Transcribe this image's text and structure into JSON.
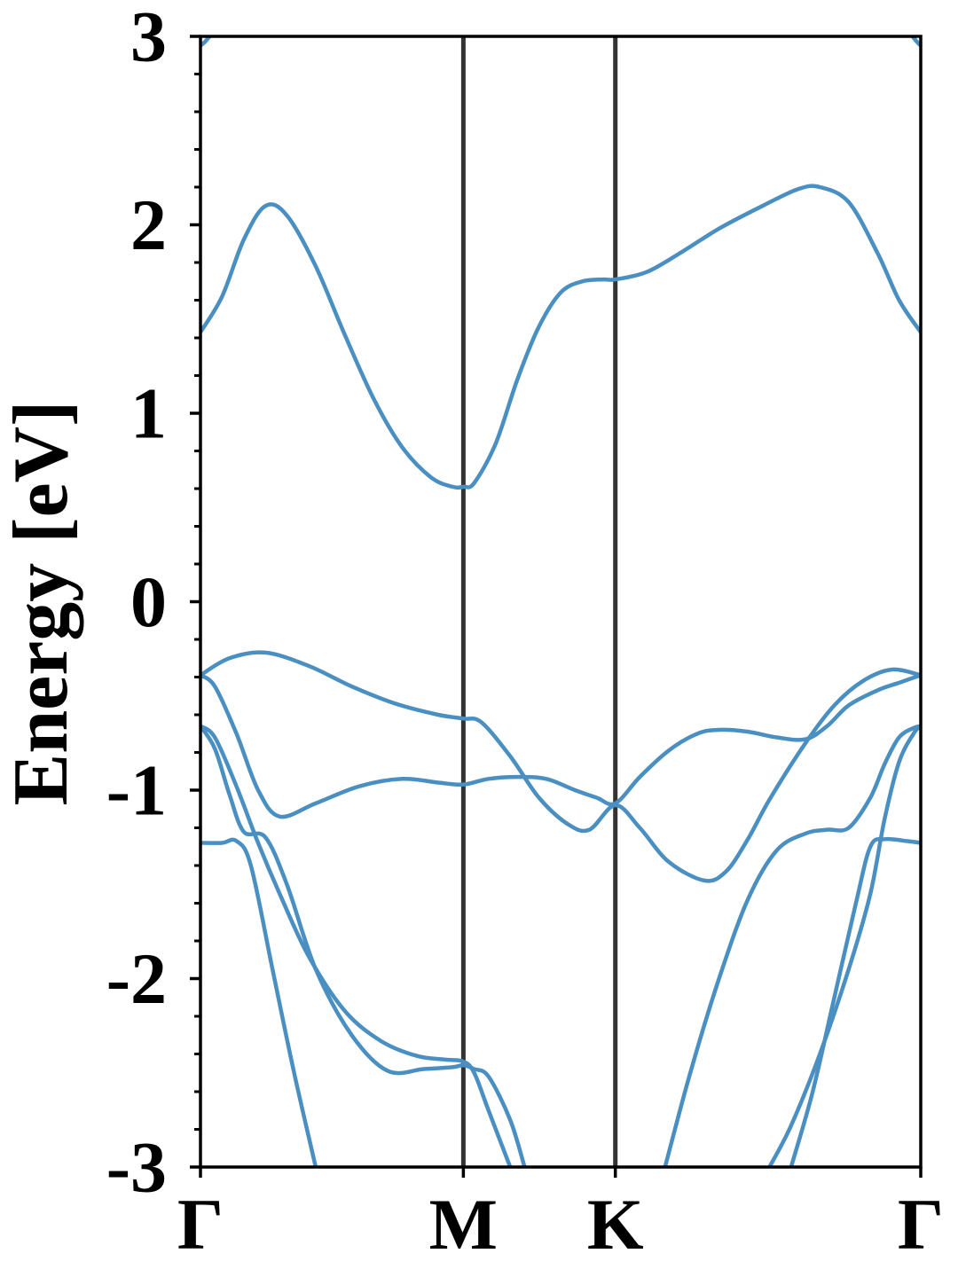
{
  "chart_data": {
    "type": "line",
    "title": "",
    "ylabel": "Energy [eV]",
    "xlabel": "",
    "ylim": [
      -3,
      3
    ],
    "xlim": [
      0,
      1
    ],
    "yticks": [
      {
        "value": 3,
        "label": "3"
      },
      {
        "value": 2,
        "label": "2"
      },
      {
        "value": 1,
        "label": "1"
      },
      {
        "value": 0,
        "label": "0"
      },
      {
        "value": -1,
        "label": "-1"
      },
      {
        "value": -2,
        "label": "-2"
      },
      {
        "value": -3,
        "label": "-3"
      }
    ],
    "high_symmetry_points": [
      {
        "label": "Γ",
        "x": 0.0
      },
      {
        "label": "M",
        "x": 0.365
      },
      {
        "label": "K",
        "x": 0.576
      },
      {
        "label": "Γ",
        "x": 1.0
      }
    ],
    "grid": false,
    "series_color": "#4a8fc2",
    "series": [
      {
        "x": [
          0.0,
          0.03,
          0.06,
          0.09,
          0.12,
          0.16,
          0.2,
          0.24,
          0.28,
          0.32,
          0.35,
          0.365,
          0.38,
          0.41,
          0.44,
          0.47,
          0.5,
          0.53,
          0.56,
          0.576,
          0.62,
          0.67,
          0.72,
          0.78,
          0.83,
          0.86,
          0.9,
          0.94,
          0.97,
          1.0
        ],
        "y": [
          1.43,
          1.62,
          1.92,
          2.1,
          2.05,
          1.78,
          1.42,
          1.08,
          0.82,
          0.66,
          0.61,
          0.61,
          0.63,
          0.84,
          1.18,
          1.46,
          1.64,
          1.7,
          1.71,
          1.71,
          1.75,
          1.86,
          1.98,
          2.1,
          2.19,
          2.2,
          2.12,
          1.85,
          1.6,
          1.43
        ]
      },
      {
        "x": [
          0.0,
          0.04,
          0.09,
          0.15,
          0.21,
          0.27,
          0.33,
          0.365,
          0.39,
          0.43,
          0.47,
          0.51,
          0.54,
          0.576,
          0.61,
          0.65,
          0.7,
          0.73,
          0.76,
          0.79,
          0.84,
          0.88,
          0.92,
          0.96,
          1.0
        ],
        "y": [
          -0.39,
          -0.3,
          -0.27,
          -0.34,
          -0.45,
          -0.54,
          -0.6,
          -0.62,
          -0.64,
          -0.82,
          -1.04,
          -1.18,
          -1.21,
          -1.08,
          -1.2,
          -1.38,
          -1.48,
          -1.43,
          -1.26,
          -1.05,
          -0.75,
          -0.55,
          -0.42,
          -0.36,
          -0.39
        ]
      },
      {
        "x": [
          0.0,
          0.02,
          0.05,
          0.08,
          0.11,
          0.16,
          0.22,
          0.28,
          0.33,
          0.365,
          0.4,
          0.44,
          0.48,
          0.52,
          0.55,
          0.576,
          0.61,
          0.65,
          0.69,
          0.72,
          0.76,
          0.8,
          0.84,
          0.87,
          0.9,
          0.94,
          0.97,
          1.0
        ],
        "y": [
          -0.39,
          -0.45,
          -0.7,
          -1.0,
          -1.14,
          -1.07,
          -0.98,
          -0.94,
          -0.96,
          -0.97,
          -0.94,
          -0.93,
          -0.94,
          -1.0,
          -1.04,
          -1.07,
          -0.93,
          -0.79,
          -0.7,
          -0.68,
          -0.69,
          -0.72,
          -0.73,
          -0.66,
          -0.55,
          -0.47,
          -0.43,
          -0.39
        ]
      },
      {
        "x": [
          0.0,
          0.02,
          0.04,
          0.06,
          0.09,
          0.12,
          0.16,
          0.21,
          0.26,
          0.31,
          0.35,
          0.365,
          0.38,
          0.4,
          0.43,
          0.45
        ],
        "y": [
          -0.66,
          -0.78,
          -1.02,
          -1.22,
          -1.25,
          -1.5,
          -1.95,
          -2.3,
          -2.49,
          -2.48,
          -2.47,
          -2.46,
          -2.48,
          -2.52,
          -2.75,
          -3.0
        ]
      },
      {
        "x": [
          0.0,
          0.02,
          0.05,
          0.08,
          0.11,
          0.15,
          0.2,
          0.25,
          0.3,
          0.34,
          0.365,
          0.38,
          0.4,
          0.43
        ],
        "y": [
          -0.66,
          -0.72,
          -0.98,
          -1.28,
          -1.55,
          -1.88,
          -2.17,
          -2.33,
          -2.41,
          -2.43,
          -2.44,
          -2.5,
          -2.7,
          -3.0
        ]
      },
      {
        "x": [
          0.0,
          0.03,
          0.05,
          0.07,
          0.1,
          0.13,
          0.16
        ],
        "y": [
          -1.28,
          -1.28,
          -1.27,
          -1.4,
          -1.95,
          -2.5,
          -3.0
        ]
      },
      {
        "x": [
          0.645,
          0.68,
          0.72,
          0.76,
          0.8,
          0.84,
          0.87,
          0.9,
          0.93,
          0.95,
          0.97,
          0.99,
          1.0
        ],
        "y": [
          -3.0,
          -2.5,
          -2.0,
          -1.58,
          -1.32,
          -1.23,
          -1.21,
          -1.2,
          -1.04,
          -0.86,
          -0.72,
          -0.67,
          -0.66
        ]
      },
      {
        "x": [
          0.79,
          0.82,
          0.86,
          0.9,
          0.93,
          0.95,
          0.97,
          0.99,
          1.0
        ],
        "y": [
          -3.0,
          -2.78,
          -2.4,
          -1.95,
          -1.55,
          -1.15,
          -0.85,
          -0.7,
          -0.66
        ]
      },
      {
        "x": [
          0.82,
          0.85,
          0.88,
          0.91,
          0.93,
          0.95,
          0.98,
          1.0
        ],
        "y": [
          -3.0,
          -2.6,
          -2.1,
          -1.6,
          -1.3,
          -1.26,
          -1.27,
          -1.28
        ]
      },
      {
        "x": [
          0.0,
          0.006,
          0.013,
          0.02
        ],
        "y": [
          2.95,
          2.97,
          3.0,
          3.02
        ]
      },
      {
        "x": [
          0.98,
          0.988,
          0.995,
          1.0
        ],
        "y": [
          3.02,
          3.0,
          2.97,
          2.95
        ]
      }
    ]
  }
}
